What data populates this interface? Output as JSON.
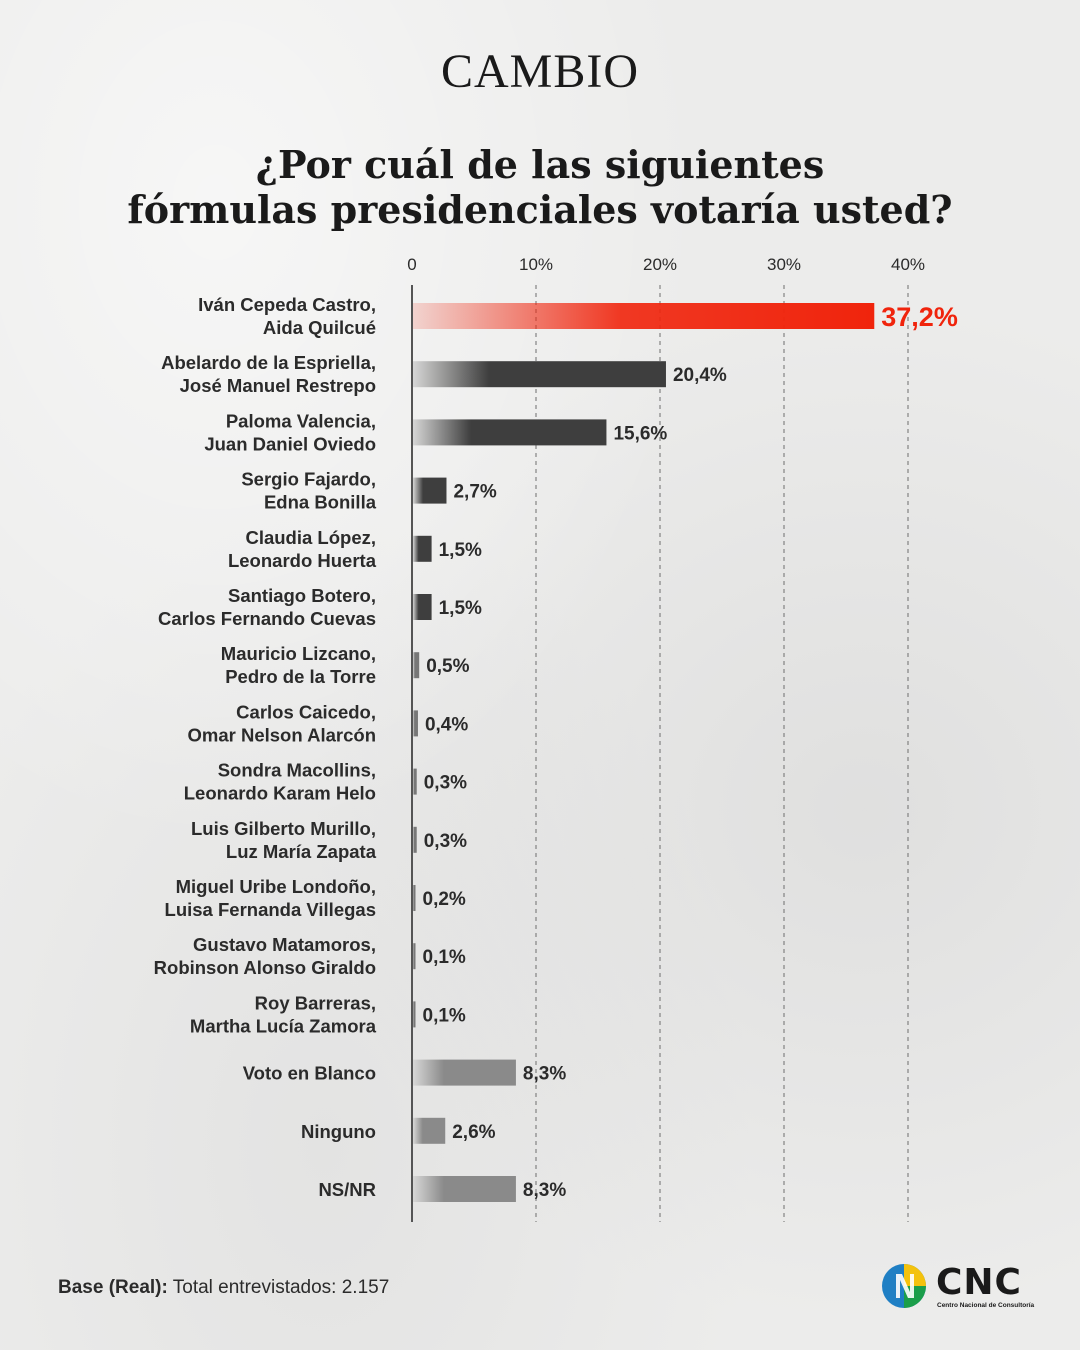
{
  "brand": "CAMBIO",
  "title_line1": "¿Por cuál de las siguientes",
  "title_line2": "fórmulas presidenciales votaría usted?",
  "footer": {
    "base_label": "Base (Real):",
    "base_text": "Total entrevistados: 2.157"
  },
  "logo": {
    "name": "CNC",
    "subtitle": "Centro Nacional de Consultoría"
  },
  "colors": {
    "highlight": "#f0240c",
    "dark_bar": "#3e3e3e",
    "mid_bar": "#777777",
    "light_bar": "#8a8a8a",
    "text": "#2b2b2b"
  },
  "chart_data": {
    "type": "bar",
    "orientation": "horizontal",
    "categories": [
      [
        "Iván Cepeda Castro,",
        "Aida Quilcué"
      ],
      [
        "Abelardo de la Espriella,",
        "José Manuel Restrepo"
      ],
      [
        "Paloma Valencia,",
        "Juan Daniel Oviedo"
      ],
      [
        "Sergio Fajardo,",
        "Edna Bonilla"
      ],
      [
        "Claudia López,",
        "Leonardo Huerta"
      ],
      [
        "Santiago Botero,",
        "Carlos Fernando Cuevas"
      ],
      [
        "Mauricio Lizcano,",
        "Pedro de la Torre"
      ],
      [
        "Carlos Caicedo,",
        "Omar Nelson Alarcón"
      ],
      [
        "Sondra Macollins,",
        "Leonardo Karam Helo"
      ],
      [
        "Luis Gilberto Murillo,",
        "Luz María Zapata"
      ],
      [
        "Miguel Uribe Londoño,",
        "Luisa Fernanda Villegas"
      ],
      [
        "Gustavo Matamoros,",
        "Robinson Alonso Giraldo"
      ],
      [
        "Roy Barreras,",
        "Martha Lucía Zamora"
      ],
      [
        "Voto en Blanco"
      ],
      [
        "Ninguno"
      ],
      [
        "NS/NR"
      ]
    ],
    "values": [
      37.2,
      20.4,
      15.6,
      2.7,
      1.5,
      1.5,
      0.5,
      0.4,
      0.3,
      0.3,
      0.2,
      0.1,
      0.1,
      8.3,
      2.6,
      8.3
    ],
    "value_labels": [
      "37,2%",
      "20,4%",
      "15,6%",
      "2,7%",
      "1,5%",
      "1,5%",
      "0,5%",
      "0,4%",
      "0,3%",
      "0,3%",
      "0,2%",
      "0,1%",
      "0,1%",
      "8,3%",
      "2,6%",
      "8,3%"
    ],
    "bar_styles": [
      "highlight",
      "dark",
      "dark",
      "dark",
      "dark",
      "dark",
      "mid",
      "mid",
      "mid",
      "mid",
      "mid",
      "mid",
      "mid",
      "light",
      "light",
      "light"
    ],
    "xticks": [
      0,
      10,
      20,
      30,
      40
    ],
    "xtick_labels": [
      "0",
      "10%",
      "20%",
      "30%",
      "40%"
    ],
    "xlim": [
      0,
      40
    ],
    "grid": "vertical dashed"
  }
}
